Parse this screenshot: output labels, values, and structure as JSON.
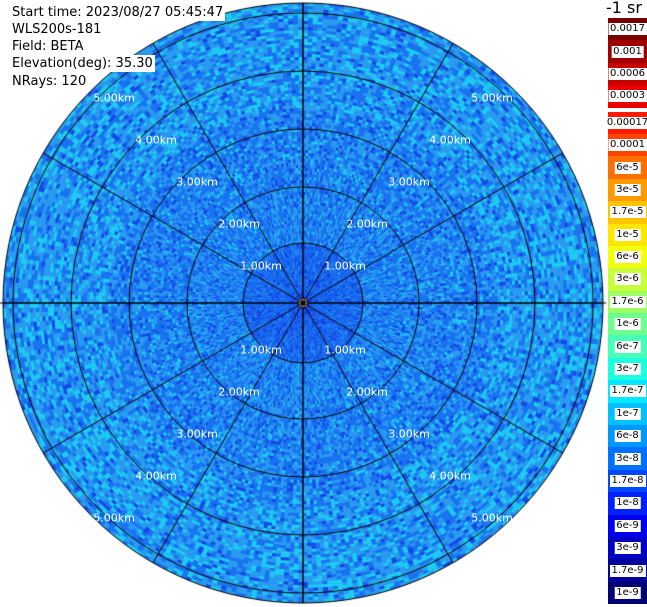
{
  "info": {
    "start_time": "Start time: 2023/08/27 05:45:47",
    "site": "WLS200s-181",
    "field": "Field: BETA",
    "elevation": "Elevation(deg): 35.30",
    "nrays": "NRays: 120"
  },
  "units": "-1 sr",
  "colorbar": {
    "top_block": [
      {
        "label": "0.0017",
        "color": "#7a0000"
      },
      {
        "label": "0.001",
        "color": "#a10000"
      },
      {
        "label": "0.0006",
        "color": "#c80000"
      },
      {
        "label": "0.0003",
        "color": "#e80000"
      }
    ],
    "main_block": [
      {
        "label": "0.00017",
        "color": "#ff1a00"
      },
      {
        "label": "0.0001",
        "color": "#ff4400"
      },
      {
        "label": "6e-5",
        "color": "#ff7000"
      },
      {
        "label": "3e-5",
        "color": "#ff9a00"
      },
      {
        "label": "1.7e-5",
        "color": "#ffc400"
      },
      {
        "label": "1e-5",
        "color": "#ffe600"
      },
      {
        "label": "6e-6",
        "color": "#f2ff0f"
      },
      {
        "label": "3e-6",
        "color": "#c8ff3a"
      },
      {
        "label": "1.7e-6",
        "color": "#9dff63"
      },
      {
        "label": "1e-6",
        "color": "#6fff8e"
      },
      {
        "label": "6e-7",
        "color": "#46ffb8"
      },
      {
        "label": "3e-7",
        "color": "#1effe0"
      },
      {
        "label": "1.7e-7",
        "color": "#00e8ff"
      },
      {
        "label": "1e-7",
        "color": "#00c0ff"
      },
      {
        "label": "6e-8",
        "color": "#0098ff"
      },
      {
        "label": "3e-8",
        "color": "#0070ff"
      },
      {
        "label": "1.7e-8",
        "color": "#0048ff"
      },
      {
        "label": "1e-8",
        "color": "#0020ff"
      },
      {
        "label": "6e-9",
        "color": "#0000ee"
      },
      {
        "label": "3e-9",
        "color": "#0000c4"
      },
      {
        "label": "1.7e-9",
        "color": "#00009a"
      },
      {
        "label": "1e-9",
        "color": "#000072"
      }
    ]
  },
  "range_rings": [
    "1.00km",
    "2.00km",
    "3.00km",
    "4.00km",
    "5.00km"
  ],
  "colors": {
    "field_light": "#2a9cf0",
    "field_mid": "#1a73f0",
    "field_dark": "#1648e8",
    "cyan": "#1ecdf2",
    "grid": "#000000"
  }
}
